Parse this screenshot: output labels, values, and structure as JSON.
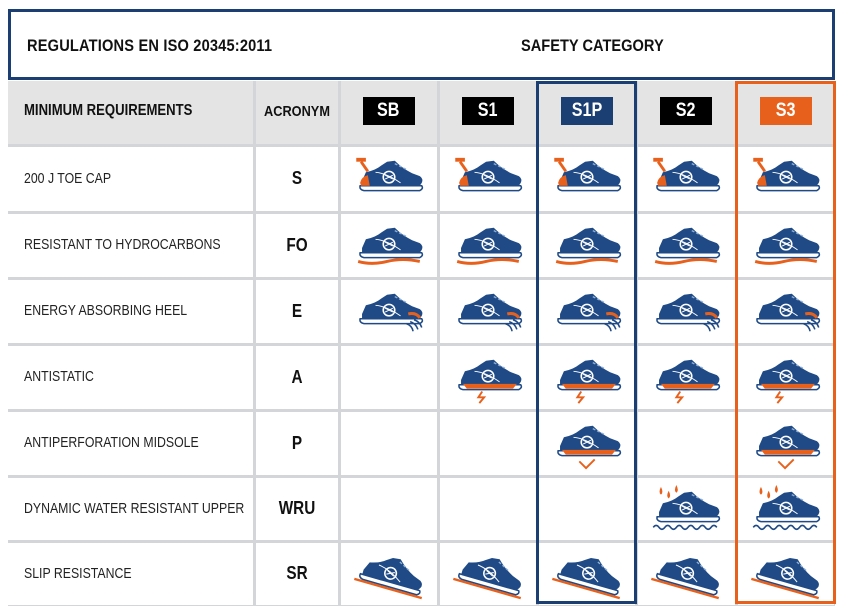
{
  "header": {
    "regulation": "REGULATIONS EN ISO 20345:2011",
    "category": "SAFETY CATEGORY"
  },
  "table": {
    "col_requirements": "MINIMUM REQUIREMENTS",
    "col_acronym": "ACRONYM",
    "categories": [
      {
        "label": "SB",
        "color": "#000000"
      },
      {
        "label": "S1",
        "color": "#000000"
      },
      {
        "label": "S1P",
        "color": "#1b3f73"
      },
      {
        "label": "S2",
        "color": "#000000"
      },
      {
        "label": "S3",
        "color": "#e8611c"
      }
    ],
    "rows": [
      {
        "requirement": "200 J TOE CAP",
        "acronym": "S",
        "icon": "toe-cap-hammer-icon",
        "applies": [
          true,
          true,
          true,
          true,
          true
        ]
      },
      {
        "requirement": "RESISTANT TO HYDROCARBONS",
        "acronym": "FO",
        "icon": "hydrocarbon-sole-icon",
        "applies": [
          true,
          true,
          true,
          true,
          true
        ]
      },
      {
        "requirement": "ENERGY ABSORBING HEEL",
        "acronym": "E",
        "icon": "shock-heel-icon",
        "applies": [
          true,
          true,
          true,
          true,
          true
        ]
      },
      {
        "requirement": "ANTISTATIC",
        "acronym": "A",
        "icon": "antistatic-bolt-icon",
        "applies": [
          false,
          true,
          true,
          true,
          true
        ]
      },
      {
        "requirement": "ANTIPERFORATION MIDSOLE",
        "acronym": "P",
        "icon": "nail-midsole-icon",
        "applies": [
          false,
          false,
          true,
          false,
          true
        ]
      },
      {
        "requirement": "DYNAMIC WATER  RESISTANT UPPER",
        "acronym": "WRU",
        "icon": "water-drop-icon",
        "applies": [
          false,
          false,
          false,
          true,
          true
        ]
      },
      {
        "requirement": "SLIP RESISTANCE",
        "acronym": "SR",
        "icon": "slip-slope-icon",
        "applies": [
          true,
          true,
          true,
          true,
          true
        ]
      }
    ]
  },
  "colors": {
    "navy": "#1b3f73",
    "orange": "#e8611c",
    "header_gray": "#e4e4e5",
    "grid": "#d4d5d8"
  }
}
